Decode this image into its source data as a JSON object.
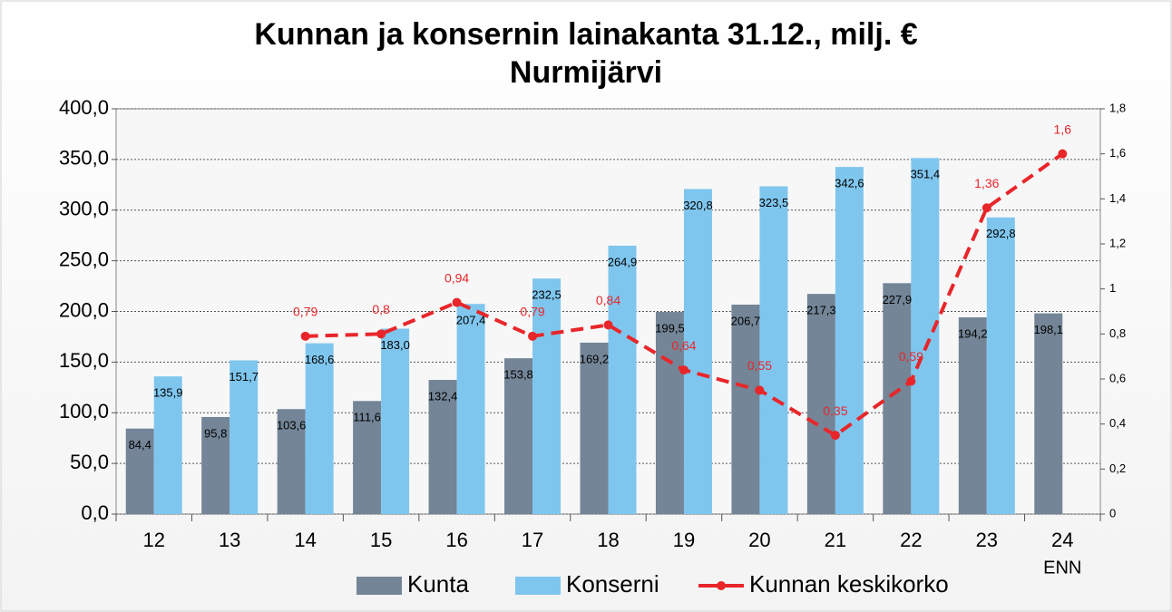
{
  "chart_data": {
    "type": "bar",
    "title": "Kunnan ja konsernin lainakanta 31.12., milj. €",
    "subtitle": "Nurmijärvi",
    "categories": [
      "12",
      "13",
      "14",
      "15",
      "16",
      "17",
      "18",
      "19",
      "20",
      "21",
      "22",
      "23",
      "24"
    ],
    "category_note": "ENN",
    "series": [
      {
        "name": "Kunta",
        "color": "#738597",
        "type": "bar",
        "values": [
          84.4,
          95.8,
          103.6,
          111.6,
          132.4,
          153.8,
          169.2,
          199.5,
          206.7,
          217.3,
          227.9,
          194.2,
          198.1
        ],
        "value_labels": [
          "84,4",
          "95,8",
          "103,6",
          "111,6",
          "132,4",
          "153,8",
          "169,2",
          "199,5",
          "206,7",
          "217,3",
          "227,9",
          "194,2",
          "198,1"
        ]
      },
      {
        "name": "Konserni",
        "color": "#7fc6ee",
        "type": "bar",
        "values": [
          135.9,
          151.7,
          168.6,
          183.0,
          207.4,
          232.5,
          264.9,
          320.8,
          323.5,
          342.6,
          351.4,
          292.8,
          null
        ],
        "value_labels": [
          "135,9",
          "151,7",
          "168,6",
          "183,0",
          "207,4",
          "232,5",
          "264,9",
          "320,8",
          "323,5",
          "342,6",
          "351,4",
          "292,8",
          null
        ]
      },
      {
        "name": "Kunnan keskikorko",
        "color": "#e8262a",
        "type": "line",
        "axis": "y2",
        "values": [
          null,
          null,
          0.79,
          0.8,
          0.94,
          0.79,
          0.84,
          0.64,
          0.55,
          0.35,
          0.59,
          1.36,
          1.6
        ],
        "value_labels": [
          null,
          null,
          "0,79",
          "0,8",
          "0,94",
          "0,79",
          "0,84",
          "0,64",
          "0,55",
          "0,35",
          "0,59",
          "1,36",
          "1,6"
        ]
      }
    ],
    "ylim": [
      0,
      400
    ],
    "yticks": [
      {
        "value": 0,
        "label": "0,0"
      },
      {
        "value": 50,
        "label": "50,0"
      },
      {
        "value": 100,
        "label": "100,0"
      },
      {
        "value": 150,
        "label": "150,0"
      },
      {
        "value": 200,
        "label": "200,0"
      },
      {
        "value": 250,
        "label": "250,0"
      },
      {
        "value": 300,
        "label": "300,0"
      },
      {
        "value": 350,
        "label": "350,0"
      },
      {
        "value": 400,
        "label": "400,0"
      }
    ],
    "y2lim": [
      0,
      1.8
    ],
    "y2ticks": [
      0,
      {
        "value": 0.2,
        "label": "0,2"
      },
      {
        "value": 0.4,
        "label": "0,4"
      },
      {
        "value": 0.6,
        "label": "0,6"
      },
      {
        "value": 0.8,
        "label": "0,8"
      },
      1,
      {
        "value": 1.2,
        "label": "1,2"
      },
      {
        "value": 1.4,
        "label": "1,4"
      },
      {
        "value": 1.6,
        "label": "1,6"
      },
      {
        "value": 1.8,
        "label": "1,8"
      }
    ],
    "grid": true,
    "legend": "bottom"
  }
}
